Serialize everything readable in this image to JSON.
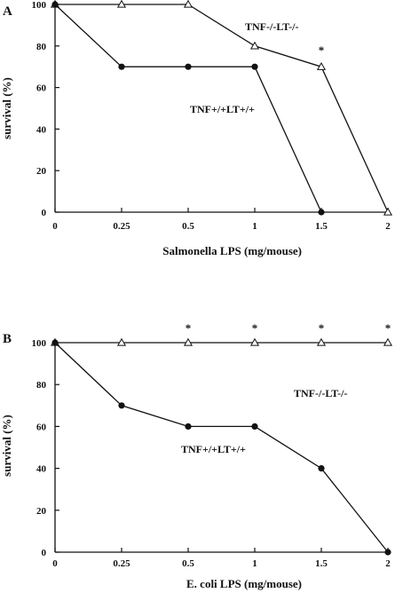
{
  "chart_data": [
    {
      "type": "line",
      "panel": "A",
      "xlabel": "Salmonella LPS (mg/mouse)",
      "ylabel": "survival (%)",
      "x_tick_labels": [
        "0",
        "0.25",
        "0.5",
        "1",
        "1.5",
        "2"
      ],
      "y_tick_labels": [
        "0",
        "20",
        "40",
        "60",
        "80",
        "100"
      ],
      "ylim": [
        0,
        100
      ],
      "categories": [
        "0",
        "0.25",
        "0.5",
        "1",
        "1.5",
        "2"
      ],
      "series": [
        {
          "name": "TNF-/-LT-/-",
          "marker": "open-triangle",
          "values": [
            100,
            100,
            100,
            80,
            70,
            0
          ]
        },
        {
          "name": "TNF+/+LT+/+",
          "marker": "filled-circle",
          "values": [
            100,
            70,
            70,
            70,
            0,
            null
          ]
        }
      ],
      "significance": {
        "symbol": "*",
        "categories": [
          "1.5"
        ]
      },
      "grid": false
    },
    {
      "type": "line",
      "panel": "B",
      "xlabel": "E. coli LPS (mg/mouse)",
      "ylabel": "survival (%)",
      "x_tick_labels": [
        "0",
        "0.25",
        "0.5",
        "1",
        "1.5",
        "2"
      ],
      "y_tick_labels": [
        "0",
        "20",
        "40",
        "60",
        "80",
        "100"
      ],
      "ylim": [
        0,
        100
      ],
      "categories": [
        "0",
        "0.25",
        "0.5",
        "1",
        "1.5",
        "2"
      ],
      "series": [
        {
          "name": "TNF-/-LT-/-",
          "marker": "open-triangle",
          "values": [
            100,
            100,
            100,
            100,
            100,
            100
          ]
        },
        {
          "name": "TNF+/+LT+/+",
          "marker": "filled-circle",
          "values": [
            100,
            70,
            60,
            60,
            40,
            0
          ]
        }
      ],
      "significance": {
        "symbol": "*",
        "categories": [
          "0.5",
          "1",
          "1.5",
          "2"
        ]
      },
      "grid": false
    }
  ]
}
